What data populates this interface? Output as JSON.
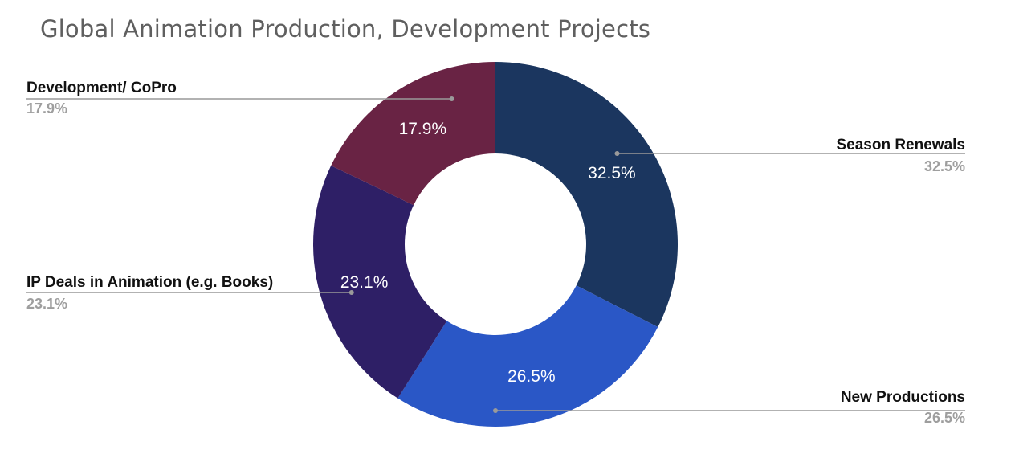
{
  "chart_data": {
    "type": "pie",
    "donut": true,
    "title": "Global Animation Production, Development Projects",
    "slices": [
      {
        "name": "Season Renewals",
        "value": 32.5,
        "label": "32.5%",
        "color": "#1b365f"
      },
      {
        "name": "New Productions",
        "value": 26.5,
        "label": "26.5%",
        "color": "#2a57c6"
      },
      {
        "name": "IP Deals in Animation (e.g. Books)",
        "value": 23.1,
        "label": "23.1%",
        "color": "#2e1f66"
      },
      {
        "name": "Development/ CoPro",
        "value": 17.9,
        "label": "17.9%",
        "color": "#692344"
      }
    ],
    "legend": "leader-line labels around chart"
  }
}
